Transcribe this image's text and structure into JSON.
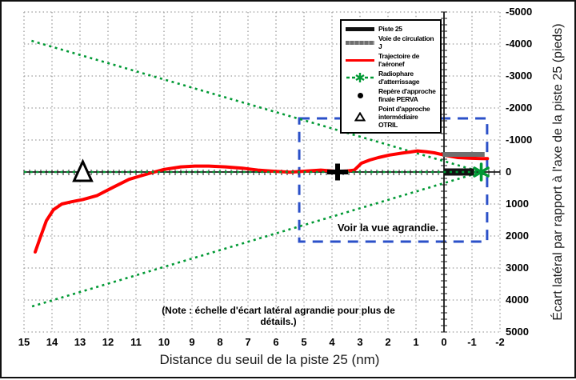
{
  "figure": {
    "note": "(Note : échelle d'écart latéral agrandie pour plus de détails.)"
  },
  "legend": {
    "items": [
      {
        "label": "Piste 25",
        "swatch": "thick-black-line"
      },
      {
        "label": "Voie de circulation J",
        "swatch": "thick-gray-line"
      },
      {
        "label": "Trajectoire de l'aéronef",
        "swatch": "red-line"
      },
      {
        "label": "Radiophare d'atterrissage",
        "swatch": "green-dashed-star"
      },
      {
        "label": "Repère d'approche finale PERVA",
        "swatch": "black-dot"
      },
      {
        "label": "Point d'approche intermédiaire OTRIL",
        "swatch": "open-triangle"
      }
    ]
  },
  "chart_data": {
    "type": "line",
    "xlabel": "Distance du seuil de la piste 25 (nm)",
    "ylabel": "Écart latéral par rapport à l'axe de la piste 25 (pieds)",
    "xlim": [
      15,
      -2
    ],
    "ylim": [
      -5000,
      5000
    ],
    "y_axis_inverted": true,
    "grid": "dotted",
    "x_ticks": [
      "15",
      "14",
      "13",
      "12",
      "11",
      "10",
      "9",
      "8",
      "7",
      "6",
      "5",
      "4",
      "3",
      "2",
      "1",
      "0",
      "-1",
      "-2"
    ],
    "y_ticks": [
      "-5000",
      "-4000",
      "-3000",
      "-2000",
      "-1000",
      "0",
      "1000",
      "2000",
      "3000",
      "4000",
      "5000"
    ],
    "colors": {
      "trajectory": "#ff0000",
      "localizer": "#009934",
      "runway": "#111111",
      "taxiway": "#6f6f6f",
      "zoom_box": "#2b50c8",
      "grid": "#9e9e9e"
    },
    "series": {
      "trajectory": [
        [
          14.6,
          2500
        ],
        [
          14.42,
          2050
        ],
        [
          14.2,
          1520
        ],
        [
          13.95,
          1180
        ],
        [
          13.65,
          1000
        ],
        [
          13.3,
          930
        ],
        [
          12.9,
          860
        ],
        [
          12.4,
          740
        ],
        [
          11.8,
          470
        ],
        [
          11.25,
          230
        ],
        [
          10.85,
          125
        ],
        [
          10.45,
          25
        ],
        [
          10.0,
          -80
        ],
        [
          9.4,
          -160
        ],
        [
          8.9,
          -185
        ],
        [
          8.4,
          -185
        ],
        [
          7.8,
          -160
        ],
        [
          7.2,
          -120
        ],
        [
          6.65,
          -60
        ],
        [
          6.1,
          -25
        ],
        [
          5.5,
          5
        ],
        [
          4.9,
          -30
        ],
        [
          4.4,
          -60
        ],
        [
          3.8,
          -20
        ],
        [
          3.5,
          -30
        ],
        [
          3.2,
          -60
        ],
        [
          2.95,
          -275
        ],
        [
          2.65,
          -375
        ],
        [
          2.35,
          -450
        ],
        [
          1.95,
          -530
        ],
        [
          1.5,
          -590
        ],
        [
          1.2,
          -625
        ],
        [
          0.95,
          -660
        ],
        [
          0.65,
          -635
        ],
        [
          0.35,
          -600
        ],
        [
          -0.05,
          -520
        ],
        [
          -0.5,
          -450
        ],
        [
          -0.9,
          -430
        ],
        [
          -1.35,
          -420
        ],
        [
          -1.55,
          -420
        ]
      ],
      "localizer_beam_upper": [
        [
          14.73,
          -4100
        ],
        [
          -1.33,
          0
        ]
      ],
      "localizer_beam_lower": [
        [
          14.71,
          4200
        ],
        [
          -1.33,
          0
        ]
      ],
      "localizer_centerline": [
        [
          15.0,
          0
        ],
        [
          -1.33,
          0
        ]
      ]
    },
    "markers": [
      {
        "id": "OTRIL",
        "type": "triangle-open",
        "nm": 12.9,
        "ft": 0
      },
      {
        "id": "PERVA",
        "type": "plus",
        "nm": 3.8,
        "ft": 0
      },
      {
        "id": "localizer",
        "type": "star6",
        "nm": -1.33,
        "ft": 0
      }
    ],
    "shapes": {
      "runway": {
        "from_nm": 0.0,
        "to_nm": -1.08,
        "ft": 0
      },
      "taxiway": {
        "from_nm": 0.05,
        "to_nm": -1.45,
        "ft": -550
      }
    },
    "zoom_box": {
      "from_nm": 5.17,
      "to_nm": -1.54,
      "from_ft": -1675,
      "to_ft": 2175,
      "label": "Voir la vue agrandie."
    }
  }
}
